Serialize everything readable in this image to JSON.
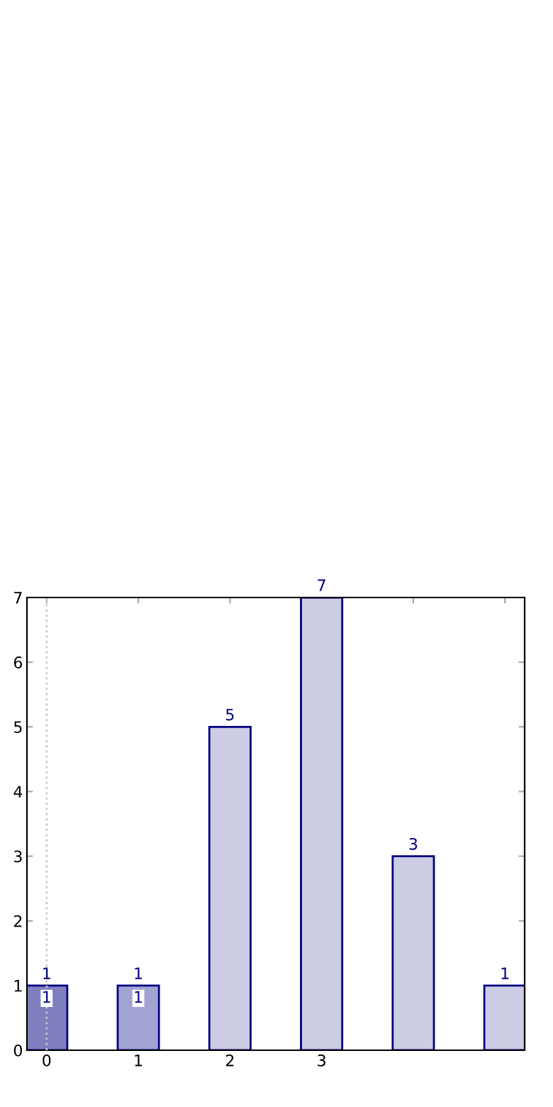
{
  "chart_data": {
    "type": "bar",
    "categories": [
      "0",
      "1",
      "2",
      "3",
      null,
      null
    ],
    "values": [
      1,
      1,
      5,
      7,
      3,
      1
    ],
    "colors": [
      "#8080c0",
      "#a3a3d3",
      "#cccce4",
      "#cccce4",
      "#cccce4",
      "#cccce4"
    ],
    "ylim": [
      0,
      7
    ],
    "yticks": [
      0,
      1,
      2,
      3,
      4,
      5,
      6,
      7
    ],
    "data_labels": true,
    "annotations": [
      {
        "text": "1",
        "x": "0",
        "y": 1
      },
      {
        "text": "1",
        "x": "1",
        "y": 1
      }
    ],
    "ref_lines": [
      {
        "axis": "x",
        "value": "0",
        "color": "#c8c8c8",
        "line_style": "dotted"
      }
    ],
    "grid": false,
    "legend": false
  }
}
